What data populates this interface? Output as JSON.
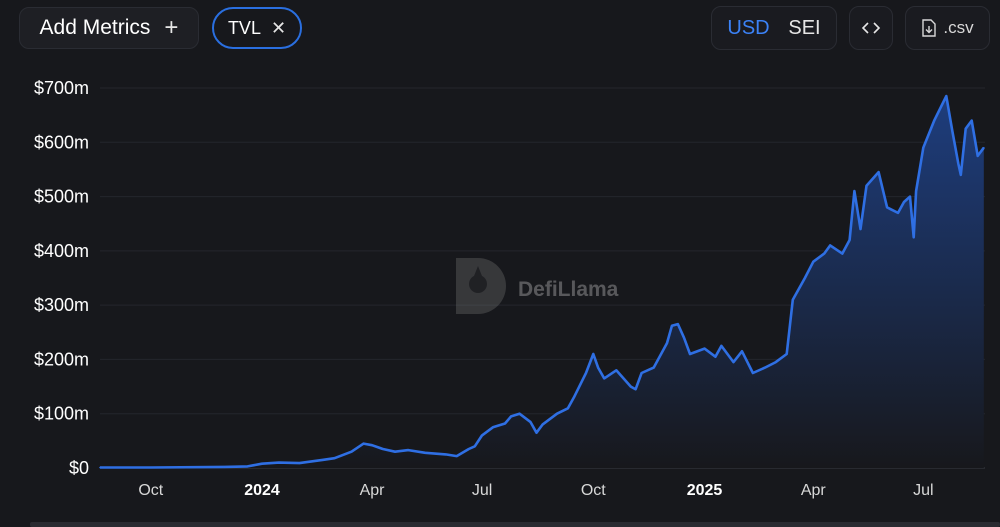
{
  "toolbar": {
    "add_metrics_label": "Add Metrics",
    "metric_chip_label": "TVL",
    "currency_options": [
      "USD",
      "SEI"
    ],
    "currency_selected": "USD",
    "csv_label": ".csv"
  },
  "icons": {
    "plus": "plus-icon",
    "close": "close-icon",
    "embed": "code-icon",
    "download": "download-file-icon"
  },
  "watermark": "DefiLlama",
  "colors": {
    "line": "#2f6fe3",
    "area_top": "#1e3f82",
    "area_bottom": "#17181c",
    "accent": "#3b82f6"
  },
  "chart_data": {
    "type": "area",
    "title": "",
    "xlabel": "",
    "ylabel": "",
    "ylim": [
      0,
      700
    ],
    "y_unit": "$m",
    "y_tick_labels": [
      "$0",
      "$100m",
      "$200m",
      "$300m",
      "$400m",
      "$500m",
      "$600m",
      "$700m"
    ],
    "y_ticks": [
      0,
      100,
      200,
      300,
      400,
      500,
      600,
      700
    ],
    "x_range": [
      "2023-08-20",
      "2025-08-21"
    ],
    "x_ticks": [
      {
        "date": "2023-10-01",
        "label": "Oct",
        "bold": false
      },
      {
        "date": "2024-01-01",
        "label": "2024",
        "bold": true
      },
      {
        "date": "2024-04-01",
        "label": "Apr",
        "bold": false
      },
      {
        "date": "2024-07-01",
        "label": "Jul",
        "bold": false
      },
      {
        "date": "2024-10-01",
        "label": "Oct",
        "bold": false
      },
      {
        "date": "2025-01-01",
        "label": "2025",
        "bold": true
      },
      {
        "date": "2025-04-01",
        "label": "Apr",
        "bold": false
      },
      {
        "date": "2025-07-01",
        "label": "Jul",
        "bold": false
      }
    ],
    "series": [
      {
        "values": [
          [
            "2023-08-20",
            1
          ],
          [
            "2023-10-01",
            1
          ],
          [
            "2023-12-01",
            2
          ],
          [
            "2023-12-20",
            3
          ],
          [
            "2024-01-01",
            8
          ],
          [
            "2024-01-15",
            10
          ],
          [
            "2024-02-01",
            9
          ],
          [
            "2024-02-20",
            15
          ],
          [
            "2024-03-01",
            18
          ],
          [
            "2024-03-15",
            30
          ],
          [
            "2024-03-25",
            45
          ],
          [
            "2024-04-01",
            42
          ],
          [
            "2024-04-10",
            35
          ],
          [
            "2024-04-20",
            30
          ],
          [
            "2024-05-01",
            33
          ],
          [
            "2024-05-15",
            28
          ],
          [
            "2024-06-01",
            25
          ],
          [
            "2024-06-10",
            22
          ],
          [
            "2024-06-20",
            35
          ],
          [
            "2024-06-25",
            40
          ],
          [
            "2024-07-01",
            60
          ],
          [
            "2024-07-10",
            75
          ],
          [
            "2024-07-20",
            82
          ],
          [
            "2024-07-25",
            95
          ],
          [
            "2024-08-01",
            100
          ],
          [
            "2024-08-10",
            85
          ],
          [
            "2024-08-15",
            65
          ],
          [
            "2024-08-20",
            80
          ],
          [
            "2024-09-01",
            100
          ],
          [
            "2024-09-10",
            110
          ],
          [
            "2024-09-15",
            130
          ],
          [
            "2024-09-25",
            175
          ],
          [
            "2024-10-01",
            210
          ],
          [
            "2024-10-05",
            185
          ],
          [
            "2024-10-10",
            165
          ],
          [
            "2024-10-20",
            180
          ],
          [
            "2024-11-01",
            150
          ],
          [
            "2024-11-05",
            145
          ],
          [
            "2024-11-10",
            175
          ],
          [
            "2024-11-20",
            185
          ],
          [
            "2024-12-01",
            230
          ],
          [
            "2024-12-05",
            262
          ],
          [
            "2024-12-10",
            265
          ],
          [
            "2024-12-15",
            240
          ],
          [
            "2024-12-20",
            210
          ],
          [
            "2025-01-01",
            220
          ],
          [
            "2025-01-10",
            205
          ],
          [
            "2025-01-15",
            225
          ],
          [
            "2025-01-25",
            195
          ],
          [
            "2025-02-01",
            215
          ],
          [
            "2025-02-10",
            175
          ],
          [
            "2025-02-20",
            185
          ],
          [
            "2025-03-01",
            195
          ],
          [
            "2025-03-10",
            210
          ],
          [
            "2025-03-15",
            310
          ],
          [
            "2025-03-25",
            350
          ],
          [
            "2025-04-01",
            380
          ],
          [
            "2025-04-10",
            395
          ],
          [
            "2025-04-15",
            410
          ],
          [
            "2025-04-25",
            395
          ],
          [
            "2025-05-01",
            420
          ],
          [
            "2025-05-05",
            510
          ],
          [
            "2025-05-10",
            440
          ],
          [
            "2025-05-15",
            520
          ],
          [
            "2025-05-25",
            545
          ],
          [
            "2025-06-01",
            480
          ],
          [
            "2025-06-10",
            470
          ],
          [
            "2025-06-15",
            490
          ],
          [
            "2025-06-20",
            500
          ],
          [
            "2025-06-23",
            425
          ],
          [
            "2025-06-25",
            510
          ],
          [
            "2025-07-01",
            590
          ],
          [
            "2025-07-10",
            640
          ],
          [
            "2025-07-20",
            685
          ],
          [
            "2025-07-25",
            620
          ],
          [
            "2025-07-30",
            560
          ],
          [
            "2025-08-01",
            540
          ],
          [
            "2025-08-05",
            625
          ],
          [
            "2025-08-10",
            640
          ],
          [
            "2025-08-15",
            575
          ],
          [
            "2025-08-20",
            590
          ]
        ]
      }
    ],
    "grid": "horizontal",
    "legend": "none"
  }
}
